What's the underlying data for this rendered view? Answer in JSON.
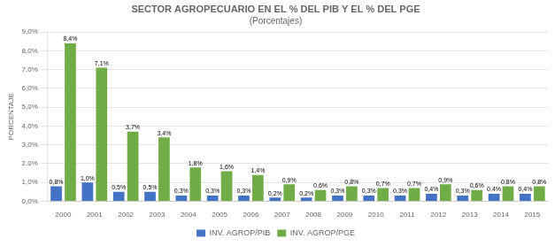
{
  "chart_data": {
    "type": "bar",
    "title": "SECTOR AGROPECUARIO EN EL % DEL PIB Y EL % DEL PGE",
    "subtitle": "(Porcentajes)",
    "y_label": "PORCENTAJE",
    "categories": [
      "2000",
      "2001",
      "2002",
      "2003",
      "2004",
      "2005",
      "2006",
      "2007",
      "2008",
      "2009",
      "2010",
      "2011",
      "2012",
      "2013",
      "2014",
      "2015"
    ],
    "series": [
      {
        "name": "INV. AGROP/PIB",
        "color": "#4472C4",
        "values": [
          0.8,
          1.0,
          0.5,
          0.5,
          0.3,
          0.3,
          0.3,
          0.2,
          0.2,
          0.3,
          0.3,
          0.3,
          0.4,
          0.3,
          0.4,
          0.4
        ],
        "value_labels": [
          "0,8%",
          "1,0%",
          "0,5%",
          "0,5%",
          "0,3%",
          "0,3%",
          "0,3%",
          "0,2%",
          "0,2%",
          "0,3%",
          "0,3%",
          "0,3%",
          "0,4%",
          "0,3%",
          "0,4%",
          "0,4%"
        ]
      },
      {
        "name": "INV. AGROP/PGE",
        "color": "#70AD47",
        "values": [
          8.4,
          7.1,
          3.7,
          3.4,
          1.8,
          1.6,
          1.4,
          0.9,
          0.6,
          0.8,
          0.7,
          0.7,
          0.9,
          0.6,
          0.8,
          0.8
        ],
        "value_labels": [
          "8,4%",
          "7,1%",
          "3,7%",
          "3,4%",
          "1,8%",
          "1,6%",
          "1,4%",
          "0,9%",
          "0,6%",
          "0,8%",
          "0,7%",
          "0,7%",
          "0,9%",
          "0,6%",
          "0,8%",
          "0,8%"
        ]
      }
    ],
    "ylim": [
      0,
      9.0
    ],
    "yticks": [
      {
        "value": 0.0,
        "label": "0,0%"
      },
      {
        "value": 1.0,
        "label": "1,0%"
      },
      {
        "value": 2.0,
        "label": "2,0%"
      },
      {
        "value": 3.0,
        "label": "3,0%"
      },
      {
        "value": 4.0,
        "label": "4,0%"
      },
      {
        "value": 5.0,
        "label": "5,0%"
      },
      {
        "value": 6.0,
        "label": "6,0%"
      },
      {
        "value": 7.0,
        "label": "7,0%"
      },
      {
        "value": 8.0,
        "label": "8,0%"
      },
      {
        "value": 9.0,
        "label": "9,0%"
      }
    ],
    "grid": true,
    "legend": "bottom",
    "data_labels": true
  }
}
